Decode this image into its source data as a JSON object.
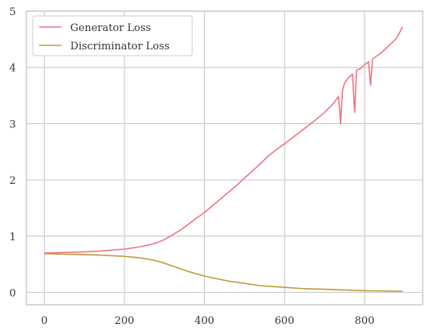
{
  "chart_data": {
    "type": "line",
    "title": "",
    "xlabel": "",
    "ylabel": "",
    "xlim": [
      -45,
      945
    ],
    "ylim": [
      -0.22,
      5.0
    ],
    "x_ticks": [
      0,
      200,
      400,
      600,
      800
    ],
    "y_ticks": [
      0,
      1,
      2,
      3,
      4,
      5
    ],
    "grid": true,
    "legend_position": "top-left",
    "series": [
      {
        "name": "Generator Loss",
        "color": "#f07585",
        "x": [
          0,
          50,
          100,
          150,
          200,
          230,
          260,
          280,
          300,
          320,
          340,
          360,
          380,
          400,
          420,
          440,
          460,
          480,
          500,
          520,
          540,
          560,
          580,
          600,
          620,
          640,
          660,
          680,
          700,
          720,
          735,
          740,
          745,
          750,
          760,
          770,
          775,
          780,
          790,
          800,
          810,
          815,
          820,
          840,
          860,
          880,
          895
        ],
        "y": [
          0.7,
          0.71,
          0.72,
          0.74,
          0.77,
          0.8,
          0.84,
          0.88,
          0.94,
          1.02,
          1.11,
          1.21,
          1.32,
          1.42,
          1.54,
          1.66,
          1.78,
          1.9,
          2.03,
          2.16,
          2.29,
          2.43,
          2.54,
          2.64,
          2.75,
          2.86,
          2.97,
          3.08,
          3.2,
          3.34,
          3.48,
          3.0,
          3.6,
          3.72,
          3.82,
          3.88,
          3.2,
          3.95,
          3.98,
          4.05,
          4.1,
          3.68,
          4.15,
          4.25,
          4.38,
          4.52,
          4.72
        ]
      },
      {
        "name": "Discriminator Loss",
        "color": "#c49a3c",
        "x": [
          0,
          50,
          100,
          150,
          200,
          230,
          260,
          280,
          300,
          320,
          340,
          360,
          380,
          400,
          420,
          440,
          460,
          480,
          500,
          520,
          540,
          560,
          580,
          600,
          620,
          640,
          660,
          680,
          700,
          720,
          740,
          760,
          780,
          800,
          820,
          840,
          860,
          880,
          895
        ],
        "y": [
          0.69,
          0.68,
          0.67,
          0.66,
          0.64,
          0.62,
          0.59,
          0.56,
          0.52,
          0.47,
          0.42,
          0.37,
          0.33,
          0.29,
          0.26,
          0.23,
          0.2,
          0.18,
          0.16,
          0.14,
          0.12,
          0.11,
          0.1,
          0.09,
          0.08,
          0.07,
          0.065,
          0.06,
          0.055,
          0.05,
          0.045,
          0.04,
          0.035,
          0.03,
          0.028,
          0.026,
          0.024,
          0.022,
          0.02
        ]
      }
    ]
  }
}
